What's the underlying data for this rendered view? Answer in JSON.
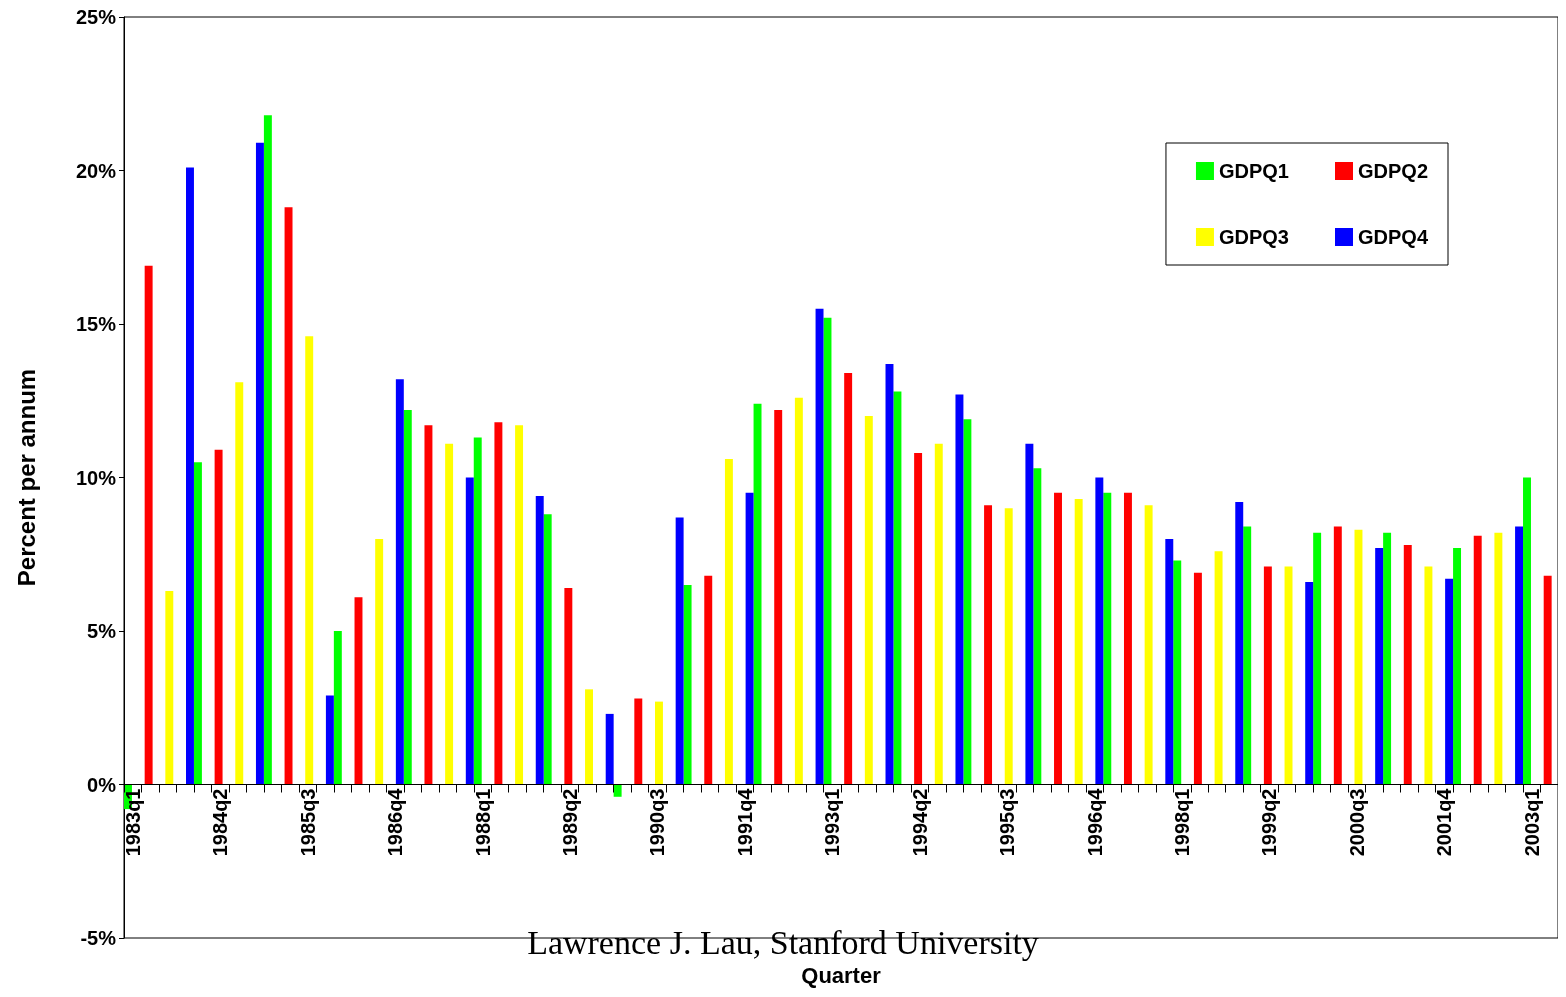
{
  "chart_data": {
    "type": "bar",
    "xlabel": "Quarter",
    "ylabel": "Percent per annum",
    "annotations": [
      "Lawrence J. Lau, Stanford University"
    ],
    "categories": [
      "1983q1",
      null,
      null,
      null,
      null,
      "1984q2",
      null,
      null,
      null,
      null,
      "1985q3",
      null,
      null,
      null,
      null,
      "1986q4",
      null,
      null,
      null,
      null,
      "1988q1",
      null,
      null,
      null,
      null,
      "1989q2",
      null,
      null,
      null,
      null,
      "1990q3",
      null,
      null,
      null,
      null,
      "1991q4",
      null,
      null,
      null,
      null,
      "1993q1",
      null,
      null,
      null,
      null,
      "1994q2",
      null,
      null,
      null,
      null,
      "1995q3",
      null,
      null,
      null,
      null,
      "1996q4",
      null,
      null,
      null,
      null,
      "1998q1",
      null,
      null,
      null,
      null,
      "1999q2",
      null,
      null,
      null,
      null,
      "2000q3",
      null,
      null,
      null,
      null,
      "2001q4",
      null,
      null,
      null,
      null,
      "2003q1",
      null
    ],
    "series": [
      {
        "name": "GDPQ1",
        "color": "#00ff00",
        "values": [
          -0.8,
          null,
          null,
          null,
          10.5,
          null,
          null,
          null,
          21.8,
          null,
          null,
          null,
          5.0,
          null,
          null,
          null,
          12.2,
          null,
          null,
          null,
          11.3,
          null,
          null,
          null,
          8.8,
          null,
          null,
          null,
          -0.4,
          null,
          null,
          null,
          6.5,
          null,
          null,
          null,
          12.4,
          null,
          null,
          null,
          15.2,
          null,
          null,
          null,
          12.8,
          null,
          null,
          null,
          11.9,
          null,
          null,
          null,
          10.3,
          null,
          null,
          null,
          9.5,
          null,
          null,
          null,
          7.3,
          null,
          null,
          null,
          8.4,
          null,
          null,
          null,
          8.2,
          null,
          null,
          null,
          8.2,
          null,
          null,
          null,
          7.7,
          null,
          null,
          null,
          10.0,
          null
        ]
      },
      {
        "name": "GDPQ2",
        "color": "#ff0000",
        "values": [
          null,
          16.9,
          null,
          null,
          null,
          10.9,
          null,
          null,
          null,
          18.8,
          null,
          null,
          null,
          6.1,
          null,
          null,
          null,
          11.7,
          null,
          null,
          null,
          11.8,
          null,
          null,
          null,
          6.4,
          null,
          null,
          null,
          2.8,
          null,
          null,
          null,
          6.8,
          null,
          null,
          null,
          12.2,
          null,
          null,
          null,
          13.4,
          null,
          null,
          null,
          10.8,
          null,
          null,
          null,
          9.1,
          null,
          null,
          null,
          9.5,
          null,
          null,
          null,
          9.5,
          null,
          null,
          null,
          6.9,
          null,
          null,
          null,
          7.1,
          null,
          null,
          null,
          8.4,
          null,
          null,
          null,
          7.8,
          null,
          null,
          null,
          8.1,
          null,
          null,
          null,
          6.8
        ]
      },
      {
        "name": "GDPQ3",
        "color": "#ffff00",
        "values": [
          null,
          null,
          6.3,
          null,
          null,
          null,
          13.1,
          null,
          null,
          null,
          14.6,
          null,
          null,
          null,
          8.0,
          null,
          null,
          null,
          11.1,
          null,
          null,
          null,
          11.7,
          null,
          null,
          null,
          3.1,
          null,
          null,
          null,
          2.7,
          null,
          null,
          null,
          10.6,
          null,
          null,
          null,
          12.6,
          null,
          null,
          null,
          12.0,
          null,
          null,
          null,
          11.1,
          null,
          null,
          null,
          9.0,
          null,
          null,
          null,
          9.3,
          null,
          null,
          null,
          9.1,
          null,
          null,
          null,
          7.6,
          null,
          null,
          null,
          7.1,
          null,
          null,
          null,
          8.3,
          null,
          null,
          null,
          7.1,
          null,
          null,
          null,
          8.2,
          null,
          null,
          null
        ]
      },
      {
        "name": "GDPQ4",
        "color": "#0000ff",
        "values": [
          null,
          null,
          null,
          20.1,
          null,
          null,
          null,
          20.9,
          null,
          null,
          null,
          2.9,
          null,
          null,
          null,
          13.2,
          null,
          null,
          null,
          10.0,
          null,
          null,
          null,
          9.4,
          null,
          null,
          null,
          2.3,
          null,
          null,
          null,
          8.7,
          null,
          null,
          null,
          9.5,
          null,
          null,
          null,
          15.5,
          null,
          null,
          null,
          13.7,
          null,
          null,
          null,
          12.7,
          null,
          null,
          null,
          11.1,
          null,
          null,
          null,
          10.0,
          null,
          null,
          null,
          8.0,
          null,
          null,
          null,
          9.2,
          null,
          null,
          null,
          6.6,
          null,
          null,
          null,
          7.7,
          null,
          null,
          null,
          6.7,
          null,
          null,
          null,
          8.4,
          null,
          null
        ]
      }
    ],
    "ylim": [
      -5,
      25
    ],
    "yticks": [
      {
        "value": -5,
        "label": "-5%"
      },
      {
        "value": 0,
        "label": "0%"
      },
      {
        "value": 5,
        "label": "5%"
      },
      {
        "value": 10,
        "label": "10%"
      },
      {
        "value": 15,
        "label": "15%"
      },
      {
        "value": 20,
        "label": "20%"
      },
      {
        "value": 25,
        "label": "25%"
      }
    ],
    "grid": false,
    "legend": "top right"
  }
}
